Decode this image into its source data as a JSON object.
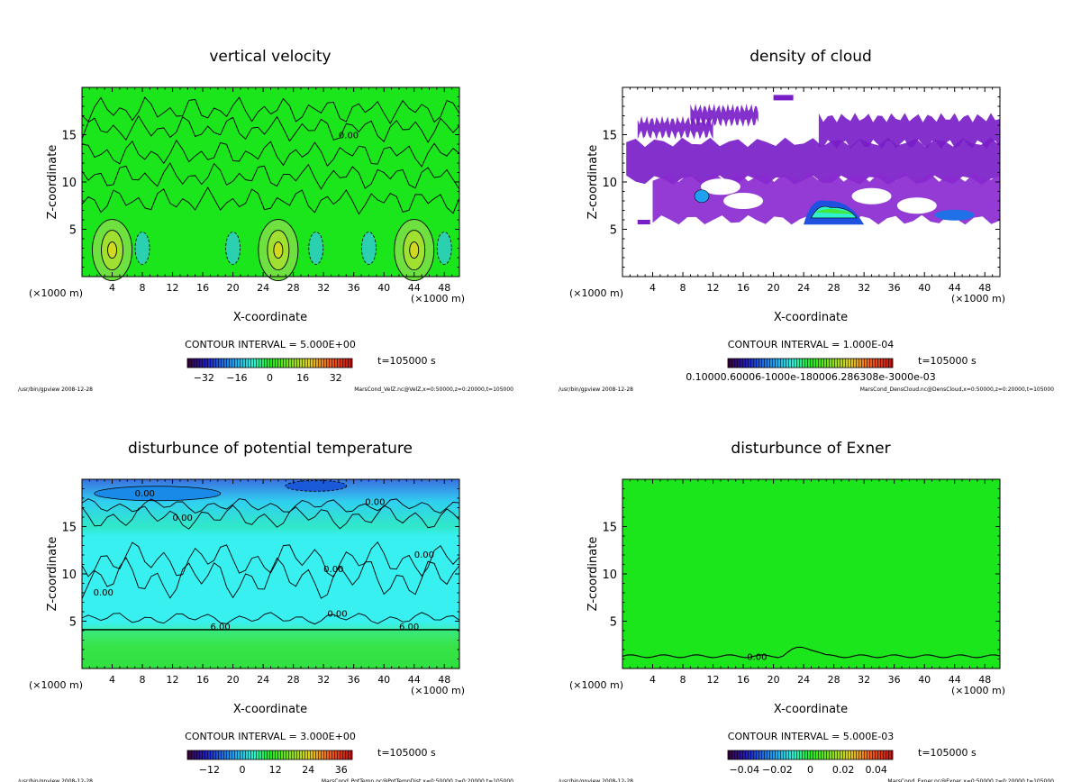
{
  "colors": {
    "field_green": "#1be61b",
    "contour": "#000000"
  },
  "chart_data": [
    {
      "type": "heatmap",
      "title": "vertical velocity",
      "xlabel": "X-coordinate",
      "ylabel": "Z-coordinate",
      "x_unit": "(×1000 m)",
      "xlim": [
        0,
        50
      ],
      "ylim": [
        0,
        20
      ],
      "xticks": [
        "4",
        "8",
        "12",
        "16",
        "20",
        "24",
        "28",
        "32",
        "36",
        "40",
        "44",
        "48"
      ],
      "yticks": [
        "5",
        "10",
        "15"
      ],
      "contour_interval": "CONTOUR INTERVAL = 5.000E+00",
      "time": "t=105000 s",
      "colorbar_ticks": [
        "−32",
        "−16",
        "0",
        "16",
        "32"
      ],
      "colorbar_range": [
        -40,
        40
      ],
      "contour_labels": [
        "0.00"
      ],
      "footer_left": "/usr/bin/gpview  2008-12-28",
      "footer_right": "MarsCond_VelZ.nc@VelZ,x=0:50000,z=0:20000,t=105000",
      "updraft_cores_x": [
        4,
        26,
        44
      ]
    },
    {
      "type": "heatmap",
      "title": "density of cloud",
      "xlabel": "X-coordinate",
      "ylabel": "Z-coordinate",
      "x_unit": "(×1000 m)",
      "xlim": [
        0,
        50
      ],
      "ylim": [
        0,
        20
      ],
      "xticks": [
        "4",
        "8",
        "12",
        "16",
        "20",
        "24",
        "28",
        "32",
        "36",
        "40",
        "44",
        "48"
      ],
      "yticks": [
        "5",
        "10",
        "15"
      ],
      "contour_interval": "CONTOUR INTERVAL = 1.000E-04",
      "time": "t=105000 s",
      "colorbar_ticks_text": "0.10000.60006-1000e-180006.286308e-3000e-03",
      "colorbar_range": [
        0.0,
        0.0014
      ],
      "footer_left": "/usr/bin/gpview  2008-12-28",
      "footer_right": "MarsCond_DensCloud.nc@DensCloud,x=0:50000,z=0:20000,t=105000"
    },
    {
      "type": "heatmap",
      "title": "disturbunce of potential temperature",
      "xlabel": "X-coordinate",
      "ylabel": "Z-coordinate",
      "x_unit": "(×1000 m)",
      "xlim": [
        0,
        50
      ],
      "ylim": [
        0,
        20
      ],
      "xticks": [
        "4",
        "8",
        "12",
        "16",
        "20",
        "24",
        "28",
        "32",
        "36",
        "40",
        "44",
        "48"
      ],
      "yticks": [
        "5",
        "10",
        "15"
      ],
      "contour_interval": "CONTOUR INTERVAL = 3.000E+00",
      "time": "t=105000 s",
      "colorbar_ticks": [
        "−12",
        "0",
        "12",
        "24",
        "36"
      ],
      "colorbar_range": [
        -20,
        40
      ],
      "contour_labels": [
        "0.00",
        "0.00",
        "0.00",
        "0.00",
        "0.00",
        "0.00",
        "0.00",
        "6.00",
        "6.00"
      ],
      "footer_left": "/usr/bin/gpview  2008-12-28",
      "footer_right": "MarsCond_PotTemp.nc@PotTempDist,x=0:50000,z=0:20000,t=105000"
    },
    {
      "type": "heatmap",
      "title": "disturbunce of Exner",
      "xlabel": "X-coordinate",
      "ylabel": "Z-coordinate",
      "x_unit": "(×1000 m)",
      "xlim": [
        0,
        50
      ],
      "ylim": [
        0,
        20
      ],
      "xticks": [
        "4",
        "8",
        "12",
        "16",
        "20",
        "24",
        "28",
        "32",
        "36",
        "40",
        "44",
        "48"
      ],
      "yticks": [
        "5",
        "10",
        "15"
      ],
      "contour_interval": "CONTOUR INTERVAL = 5.000E-03",
      "time": "t=105000 s",
      "colorbar_ticks": [
        "−0.04",
        "−0.02",
        "0",
        "0.02",
        "0.04"
      ],
      "colorbar_range": [
        -0.05,
        0.05
      ],
      "contour_labels": [
        "0.00"
      ],
      "footer_left": "/usr/bin/gpview  2008-12-28",
      "footer_right": "MarsCond_Exner.nc@Exner,x=0:50000,z=0:20000,t=105000"
    }
  ]
}
